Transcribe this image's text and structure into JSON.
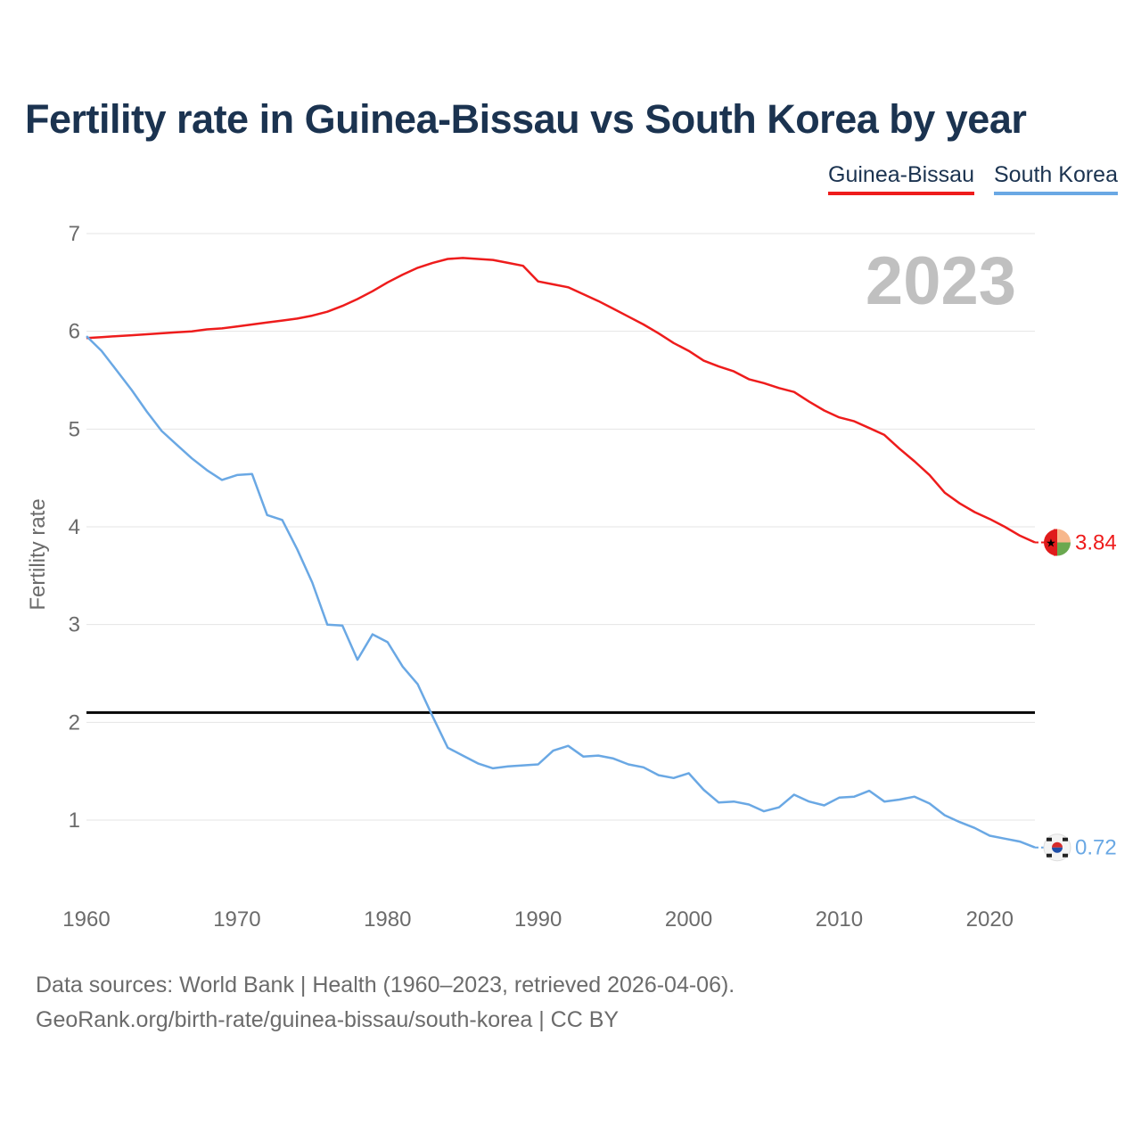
{
  "title": "Fertility rate in Guinea-Bissau vs South Korea by year",
  "footer": {
    "line1": "Data sources: World Bank | Health (1960–2023, retrieved 2026-04-06).",
    "line2": "GeoRank.org/birth-rate/guinea-bissau/south-korea | CC BY"
  },
  "colors": {
    "guinea_bissau": "#ee1c1c",
    "south_korea": "#6aa8e4",
    "title": "#1b3350",
    "reference_line": "#000000"
  },
  "chart_data": {
    "type": "line",
    "title": "Fertility rate in Guinea-Bissau vs South Korea by year",
    "xlabel": "",
    "ylabel": "Fertility rate",
    "year_label": "2023",
    "xlim": [
      1960,
      2023
    ],
    "ylim": [
      0.5,
      7
    ],
    "x_ticks": [
      1960,
      1970,
      1980,
      1990,
      2000,
      2010,
      2020
    ],
    "y_ticks": [
      1,
      2,
      3,
      4,
      5,
      6,
      7
    ],
    "grid": true,
    "legend_position": "top-right",
    "reference_line": {
      "y": 2.1
    },
    "x": [
      1960,
      1961,
      1962,
      1963,
      1964,
      1965,
      1966,
      1967,
      1968,
      1969,
      1970,
      1971,
      1972,
      1973,
      1974,
      1975,
      1976,
      1977,
      1978,
      1979,
      1980,
      1981,
      1982,
      1983,
      1984,
      1985,
      1986,
      1987,
      1988,
      1989,
      1990,
      1991,
      1992,
      1993,
      1994,
      1995,
      1996,
      1997,
      1998,
      1999,
      2000,
      2001,
      2002,
      2003,
      2004,
      2005,
      2006,
      2007,
      2008,
      2009,
      2010,
      2011,
      2012,
      2013,
      2014,
      2015,
      2016,
      2017,
      2018,
      2019,
      2020,
      2021,
      2022,
      2023
    ],
    "series": [
      {
        "name": "Guinea-Bissau",
        "color": "#ee1c1c",
        "end_label": "3.84",
        "flag_icon": "guinea-bissau-flag-icon",
        "values": [
          5.93,
          5.94,
          5.95,
          5.96,
          5.97,
          5.98,
          5.99,
          6.0,
          6.02,
          6.03,
          6.05,
          6.07,
          6.09,
          6.11,
          6.13,
          6.16,
          6.2,
          6.26,
          6.33,
          6.41,
          6.5,
          6.58,
          6.65,
          6.7,
          6.74,
          6.75,
          6.74,
          6.73,
          6.7,
          6.67,
          6.51,
          6.48,
          6.45,
          6.38,
          6.31,
          6.23,
          6.15,
          6.07,
          5.98,
          5.88,
          5.8,
          5.7,
          5.64,
          5.59,
          5.51,
          5.47,
          5.42,
          5.38,
          5.28,
          5.19,
          5.12,
          5.08,
          5.01,
          4.94,
          4.8,
          4.67,
          4.53,
          4.35,
          4.24,
          4.15,
          4.08,
          4.0,
          3.91,
          3.84
        ]
      },
      {
        "name": "South Korea",
        "color": "#6aa8e4",
        "end_label": "0.72",
        "flag_icon": "south-korea-flag-icon",
        "values": [
          5.95,
          5.8,
          5.6,
          5.4,
          5.18,
          4.98,
          4.84,
          4.7,
          4.58,
          4.48,
          4.53,
          4.54,
          4.12,
          4.07,
          3.77,
          3.43,
          3.0,
          2.99,
          2.64,
          2.9,
          2.82,
          2.57,
          2.39,
          2.06,
          1.74,
          1.66,
          1.58,
          1.53,
          1.55,
          1.56,
          1.57,
          1.71,
          1.76,
          1.65,
          1.66,
          1.63,
          1.57,
          1.54,
          1.46,
          1.43,
          1.48,
          1.31,
          1.18,
          1.19,
          1.16,
          1.09,
          1.13,
          1.26,
          1.19,
          1.15,
          1.23,
          1.24,
          1.3,
          1.19,
          1.21,
          1.24,
          1.17,
          1.05,
          0.98,
          0.92,
          0.84,
          0.81,
          0.78,
          0.72
        ]
      }
    ]
  }
}
